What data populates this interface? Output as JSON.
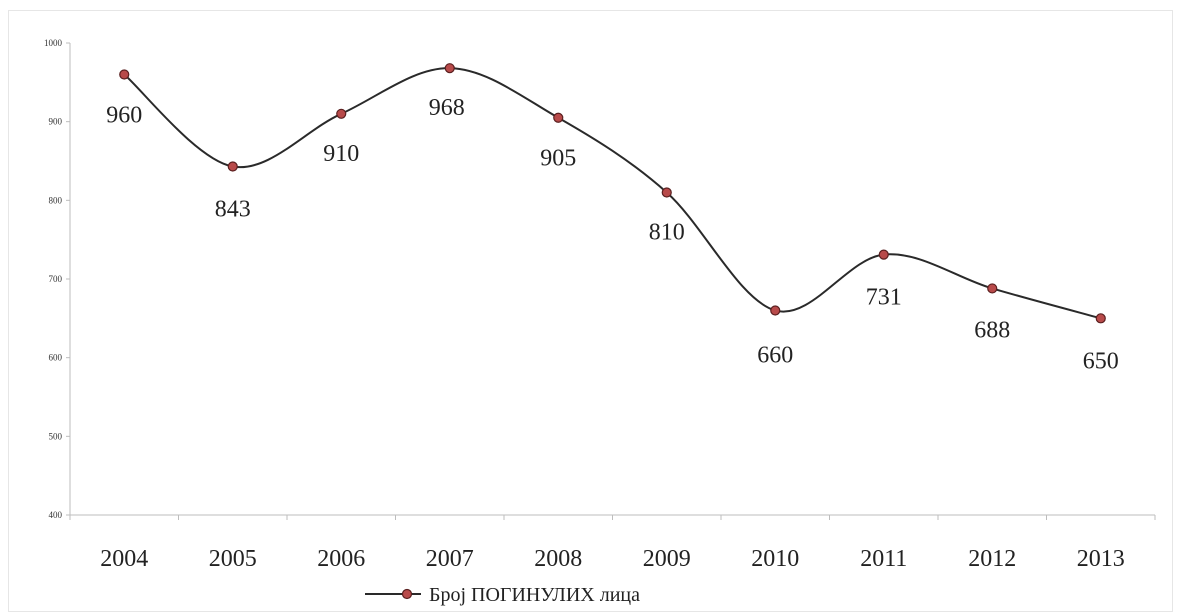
{
  "chart_data": {
    "type": "line",
    "categories": [
      "2004",
      "2005",
      "2006",
      "2007",
      "2008",
      "2009",
      "2010",
      "2011",
      "2012",
      "2013"
    ],
    "series": [
      {
        "name": "Број ПОГИНУЛИХ лица",
        "values": [
          960,
          843,
          910,
          968,
          905,
          810,
          660,
          731,
          688,
          650
        ],
        "data_labels": [
          "960",
          "843",
          "910",
          "968",
          "905",
          "810",
          "660",
          "731",
          "688",
          "650"
        ],
        "line_color": "#2a2a2a",
        "marker_color": "#b84a4a",
        "marker_edge_color": "#5a1f1f"
      }
    ],
    "ylim": [
      400,
      1000
    ],
    "yticks": [
      "400",
      "500",
      "600",
      "700",
      "800",
      "900",
      "1000"
    ],
    "smooth": true,
    "grid": false,
    "legend_position": "bottom"
  }
}
